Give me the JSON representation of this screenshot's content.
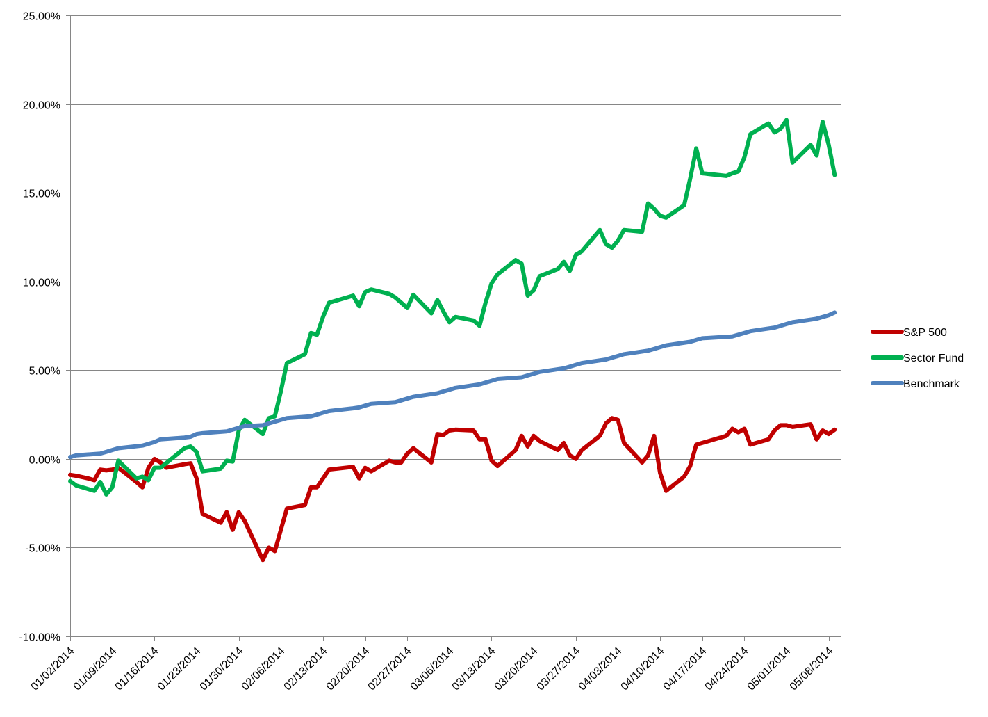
{
  "chart_data": {
    "type": "line",
    "title": "",
    "xlabel": "",
    "ylabel": "",
    "ylim": [
      -0.1,
      0.25
    ],
    "y_ticks": [
      -0.1,
      -0.05,
      0.0,
      0.05,
      0.1,
      0.15,
      0.2,
      0.25
    ],
    "y_tick_labels": [
      "-10.00%",
      "-5.00%",
      "0.00%",
      "5.00%",
      "10.00%",
      "15.00%",
      "20.00%",
      "25.00%"
    ],
    "x_start": "2014-01-02",
    "x_end": "2014-05-10",
    "x_tick_dates": [
      "2014-01-02",
      "2014-01-09",
      "2014-01-16",
      "2014-01-23",
      "2014-01-30",
      "2014-02-06",
      "2014-02-13",
      "2014-02-20",
      "2014-02-27",
      "2014-03-06",
      "2014-03-13",
      "2014-03-20",
      "2014-03-27",
      "2014-04-03",
      "2014-04-10",
      "2014-04-17",
      "2014-04-24",
      "2014-05-01",
      "2014-05-08"
    ],
    "x_tick_labels": [
      "01/02/2014",
      "01/09/2014",
      "01/16/2014",
      "01/23/2014",
      "01/30/2014",
      "02/06/2014",
      "02/13/2014",
      "02/20/2014",
      "02/27/2014",
      "03/06/2014",
      "03/13/2014",
      "03/20/2014",
      "03/27/2014",
      "04/03/2014",
      "04/10/2014",
      "04/17/2014",
      "04/24/2014",
      "05/01/2014",
      "05/08/2014"
    ],
    "grid": true,
    "legend_position": "right",
    "series": [
      {
        "name": "S&P 500",
        "color": "#C00000",
        "points": [
          [
            "2014-01-02",
            -0.009
          ],
          [
            "2014-01-03",
            -0.0095
          ],
          [
            "2014-01-05",
            -0.011
          ],
          [
            "2014-01-06",
            -0.012
          ],
          [
            "2014-01-07",
            -0.006
          ],
          [
            "2014-01-08",
            -0.0065
          ],
          [
            "2014-01-09",
            -0.006
          ],
          [
            "2014-01-10",
            -0.005
          ],
          [
            "2014-01-13",
            -0.013
          ],
          [
            "2014-01-14",
            -0.016
          ],
          [
            "2014-01-15",
            -0.005
          ],
          [
            "2014-01-16",
            0.0
          ],
          [
            "2014-01-17",
            -0.002
          ],
          [
            "2014-01-18",
            -0.005
          ],
          [
            "2014-01-21",
            -0.003
          ],
          [
            "2014-01-22",
            -0.0025
          ],
          [
            "2014-01-23",
            -0.011
          ],
          [
            "2014-01-24",
            -0.031
          ],
          [
            "2014-01-27",
            -0.036
          ],
          [
            "2014-01-28",
            -0.03
          ],
          [
            "2014-01-29",
            -0.04
          ],
          [
            "2014-01-30",
            -0.03
          ],
          [
            "2014-01-31",
            -0.035
          ],
          [
            "2014-02-03",
            -0.057
          ],
          [
            "2014-02-04",
            -0.05
          ],
          [
            "2014-02-05",
            -0.052
          ],
          [
            "2014-02-06",
            -0.04
          ],
          [
            "2014-02-07",
            -0.028
          ],
          [
            "2014-02-10",
            -0.026
          ],
          [
            "2014-02-11",
            -0.016
          ],
          [
            "2014-02-12",
            -0.016
          ],
          [
            "2014-02-13",
            -0.011
          ],
          [
            "2014-02-14",
            -0.006
          ],
          [
            "2014-02-18",
            -0.0045
          ],
          [
            "2014-02-19",
            -0.011
          ],
          [
            "2014-02-20",
            -0.005
          ],
          [
            "2014-02-21",
            -0.007
          ],
          [
            "2014-02-24",
            -0.001
          ],
          [
            "2014-02-25",
            -0.002
          ],
          [
            "2014-02-26",
            -0.002
          ],
          [
            "2014-02-27",
            0.003
          ],
          [
            "2014-02-28",
            0.006
          ],
          [
            "2014-03-03",
            -0.002
          ],
          [
            "2014-03-04",
            0.014
          ],
          [
            "2014-03-05",
            0.0135
          ],
          [
            "2014-03-06",
            0.016
          ],
          [
            "2014-03-07",
            0.0165
          ],
          [
            "2014-03-10",
            0.016
          ],
          [
            "2014-03-11",
            0.011
          ],
          [
            "2014-03-12",
            0.011
          ],
          [
            "2014-03-13",
            -0.001
          ],
          [
            "2014-03-14",
            -0.004
          ],
          [
            "2014-03-17",
            0.005
          ],
          [
            "2014-03-18",
            0.013
          ],
          [
            "2014-03-19",
            0.007
          ],
          [
            "2014-03-20",
            0.013
          ],
          [
            "2014-03-21",
            0.01
          ],
          [
            "2014-03-24",
            0.005
          ],
          [
            "2014-03-25",
            0.009
          ],
          [
            "2014-03-26",
            0.002
          ],
          [
            "2014-03-27",
            0.0
          ],
          [
            "2014-03-28",
            0.005
          ],
          [
            "2014-03-31",
            0.013
          ],
          [
            "2014-04-01",
            0.02
          ],
          [
            "2014-04-02",
            0.023
          ],
          [
            "2014-04-03",
            0.022
          ],
          [
            "2014-04-04",
            0.009
          ],
          [
            "2014-04-07",
            -0.002
          ],
          [
            "2014-04-08",
            0.002
          ],
          [
            "2014-04-09",
            0.013
          ],
          [
            "2014-04-10",
            -0.008
          ],
          [
            "2014-04-11",
            -0.018
          ],
          [
            "2014-04-14",
            -0.01
          ],
          [
            "2014-04-15",
            -0.004
          ],
          [
            "2014-04-16",
            0.008
          ],
          [
            "2014-04-17",
            0.009
          ],
          [
            "2014-04-21",
            0.013
          ],
          [
            "2014-04-22",
            0.017
          ],
          [
            "2014-04-23",
            0.015
          ],
          [
            "2014-04-24",
            0.017
          ],
          [
            "2014-04-25",
            0.008
          ],
          [
            "2014-04-28",
            0.011
          ],
          [
            "2014-04-29",
            0.016
          ],
          [
            "2014-04-30",
            0.019
          ],
          [
            "2014-05-01",
            0.019
          ],
          [
            "2014-05-02",
            0.018
          ],
          [
            "2014-05-05",
            0.0195
          ],
          [
            "2014-05-06",
            0.011
          ],
          [
            "2014-05-07",
            0.016
          ],
          [
            "2014-05-08",
            0.014
          ],
          [
            "2014-05-09",
            0.0165
          ]
        ]
      },
      {
        "name": "Sector Fund",
        "color": "#00B050",
        "points": [
          [
            "2014-01-02",
            -0.0125
          ],
          [
            "2014-01-03",
            -0.015
          ],
          [
            "2014-01-06",
            -0.018
          ],
          [
            "2014-01-07",
            -0.013
          ],
          [
            "2014-01-08",
            -0.02
          ],
          [
            "2014-01-09",
            -0.016
          ],
          [
            "2014-01-10",
            -0.001
          ],
          [
            "2014-01-13",
            -0.011
          ],
          [
            "2014-01-14",
            -0.01
          ],
          [
            "2014-01-15",
            -0.012
          ],
          [
            "2014-01-16",
            -0.005
          ],
          [
            "2014-01-17",
            -0.005
          ],
          [
            "2014-01-21",
            0.006
          ],
          [
            "2014-01-22",
            0.007
          ],
          [
            "2014-01-23",
            0.004
          ],
          [
            "2014-01-24",
            -0.007
          ],
          [
            "2014-01-27",
            -0.0055
          ],
          [
            "2014-01-28",
            -0.001
          ],
          [
            "2014-01-29",
            -0.0015
          ],
          [
            "2014-01-30",
            0.016
          ],
          [
            "2014-01-31",
            0.022
          ],
          [
            "2014-02-03",
            0.014
          ],
          [
            "2014-02-04",
            0.023
          ],
          [
            "2014-02-05",
            0.024
          ],
          [
            "2014-02-06",
            0.038
          ],
          [
            "2014-02-07",
            0.054
          ],
          [
            "2014-02-10",
            0.059
          ],
          [
            "2014-02-11",
            0.071
          ],
          [
            "2014-02-12",
            0.07
          ],
          [
            "2014-02-13",
            0.08
          ],
          [
            "2014-02-14",
            0.088
          ],
          [
            "2014-02-18",
            0.092
          ],
          [
            "2014-02-19",
            0.086
          ],
          [
            "2014-02-20",
            0.094
          ],
          [
            "2014-02-21",
            0.0955
          ],
          [
            "2014-02-24",
            0.093
          ],
          [
            "2014-02-25",
            0.091
          ],
          [
            "2014-02-26",
            0.088
          ],
          [
            "2014-02-27",
            0.085
          ],
          [
            "2014-02-28",
            0.0925
          ],
          [
            "2014-03-03",
            0.082
          ],
          [
            "2014-03-04",
            0.0895
          ],
          [
            "2014-03-05",
            0.083
          ],
          [
            "2014-03-06",
            0.077
          ],
          [
            "2014-03-07",
            0.08
          ],
          [
            "2014-03-10",
            0.078
          ],
          [
            "2014-03-11",
            0.075
          ],
          [
            "2014-03-12",
            0.088
          ],
          [
            "2014-03-13",
            0.099
          ],
          [
            "2014-03-14",
            0.104
          ],
          [
            "2014-03-17",
            0.112
          ],
          [
            "2014-03-18",
            0.11
          ],
          [
            "2014-03-19",
            0.092
          ],
          [
            "2014-03-20",
            0.095
          ],
          [
            "2014-03-21",
            0.103
          ],
          [
            "2014-03-24",
            0.107
          ],
          [
            "2014-03-25",
            0.111
          ],
          [
            "2014-03-26",
            0.106
          ],
          [
            "2014-03-27",
            0.115
          ],
          [
            "2014-03-28",
            0.117
          ],
          [
            "2014-03-31",
            0.129
          ],
          [
            "2014-04-01",
            0.121
          ],
          [
            "2014-04-02",
            0.119
          ],
          [
            "2014-04-03",
            0.123
          ],
          [
            "2014-04-04",
            0.129
          ],
          [
            "2014-04-07",
            0.128
          ],
          [
            "2014-04-08",
            0.144
          ],
          [
            "2014-04-09",
            0.141
          ],
          [
            "2014-04-10",
            0.137
          ],
          [
            "2014-04-11",
            0.136
          ],
          [
            "2014-04-14",
            0.143
          ],
          [
            "2014-04-15",
            0.158
          ],
          [
            "2014-04-16",
            0.175
          ],
          [
            "2014-04-17",
            0.161
          ],
          [
            "2014-04-21",
            0.1595
          ],
          [
            "2014-04-22",
            0.161
          ],
          [
            "2014-04-23",
            0.162
          ],
          [
            "2014-04-24",
            0.17
          ],
          [
            "2014-04-25",
            0.183
          ],
          [
            "2014-04-28",
            0.189
          ],
          [
            "2014-04-29",
            0.184
          ],
          [
            "2014-04-30",
            0.186
          ],
          [
            "2014-05-01",
            0.191
          ],
          [
            "2014-05-02",
            0.167
          ],
          [
            "2014-05-05",
            0.177
          ],
          [
            "2014-05-06",
            0.171
          ],
          [
            "2014-05-07",
            0.19
          ],
          [
            "2014-05-08",
            0.177
          ],
          [
            "2014-05-09",
            0.16
          ]
        ]
      },
      {
        "name": "Benchmark",
        "color": "#4F81BD",
        "points": [
          [
            "2014-01-02",
            0.001
          ],
          [
            "2014-01-03",
            0.002
          ],
          [
            "2014-01-07",
            0.003
          ],
          [
            "2014-01-08",
            0.004
          ],
          [
            "2014-01-09",
            0.005
          ],
          [
            "2014-01-10",
            0.006
          ],
          [
            "2014-01-14",
            0.0075
          ],
          [
            "2014-01-15",
            0.0085
          ],
          [
            "2014-01-16",
            0.0095
          ],
          [
            "2014-01-17",
            0.011
          ],
          [
            "2014-01-21",
            0.012
          ],
          [
            "2014-01-22",
            0.0125
          ],
          [
            "2014-01-23",
            0.014
          ],
          [
            "2014-01-24",
            0.0145
          ],
          [
            "2014-01-28",
            0.0155
          ],
          [
            "2014-01-29",
            0.0165
          ],
          [
            "2014-01-30",
            0.0175
          ],
          [
            "2014-01-31",
            0.0185
          ],
          [
            "2014-02-03",
            0.019
          ],
          [
            "2014-02-04",
            0.02
          ],
          [
            "2014-02-05",
            0.021
          ],
          [
            "2014-02-06",
            0.022
          ],
          [
            "2014-02-07",
            0.023
          ],
          [
            "2014-02-11",
            0.024
          ],
          [
            "2014-02-12",
            0.025
          ],
          [
            "2014-02-13",
            0.026
          ],
          [
            "2014-02-14",
            0.027
          ],
          [
            "2014-02-18",
            0.0285
          ],
          [
            "2014-02-19",
            0.029
          ],
          [
            "2014-02-20",
            0.03
          ],
          [
            "2014-02-21",
            0.031
          ],
          [
            "2014-02-25",
            0.032
          ],
          [
            "2014-02-26",
            0.033
          ],
          [
            "2014-02-27",
            0.034
          ],
          [
            "2014-02-28",
            0.035
          ],
          [
            "2014-03-04",
            0.037
          ],
          [
            "2014-03-05",
            0.038
          ],
          [
            "2014-03-06",
            0.039
          ],
          [
            "2014-03-07",
            0.04
          ],
          [
            "2014-03-11",
            0.042
          ],
          [
            "2014-03-12",
            0.043
          ],
          [
            "2014-03-13",
            0.044
          ],
          [
            "2014-03-14",
            0.045
          ],
          [
            "2014-03-18",
            0.046
          ],
          [
            "2014-03-19",
            0.047
          ],
          [
            "2014-03-20",
            0.048
          ],
          [
            "2014-03-21",
            0.049
          ],
          [
            "2014-03-25",
            0.051
          ],
          [
            "2014-03-26",
            0.052
          ],
          [
            "2014-03-27",
            0.053
          ],
          [
            "2014-03-28",
            0.054
          ],
          [
            "2014-04-01",
            0.056
          ],
          [
            "2014-04-02",
            0.057
          ],
          [
            "2014-04-03",
            0.058
          ],
          [
            "2014-04-04",
            0.059
          ],
          [
            "2014-04-08",
            0.061
          ],
          [
            "2014-04-09",
            0.062
          ],
          [
            "2014-04-10",
            0.063
          ],
          [
            "2014-04-11",
            0.064
          ],
          [
            "2014-04-15",
            0.066
          ],
          [
            "2014-04-16",
            0.067
          ],
          [
            "2014-04-17",
            0.068
          ],
          [
            "2014-04-22",
            0.069
          ],
          [
            "2014-04-23",
            0.07
          ],
          [
            "2014-04-24",
            0.071
          ],
          [
            "2014-04-25",
            0.072
          ],
          [
            "2014-04-29",
            0.074
          ],
          [
            "2014-04-30",
            0.075
          ],
          [
            "2014-05-01",
            0.076
          ],
          [
            "2014-05-02",
            0.077
          ],
          [
            "2014-05-06",
            0.079
          ],
          [
            "2014-05-07",
            0.08
          ],
          [
            "2014-05-08",
            0.081
          ],
          [
            "2014-05-09",
            0.0825
          ]
        ]
      }
    ]
  }
}
